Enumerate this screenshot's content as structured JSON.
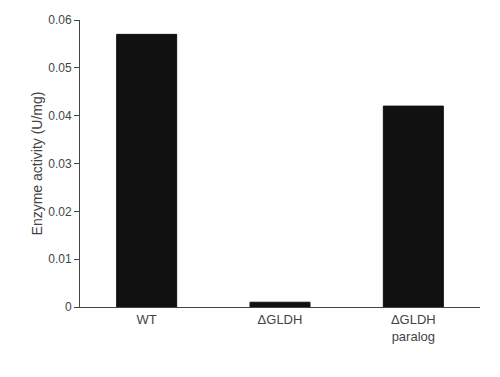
{
  "chart_data": {
    "type": "bar",
    "categories": [
      "WT",
      "ΔGLDH",
      "ΔGLDH\nparalog"
    ],
    "values": [
      0.057,
      0.001,
      0.042
    ],
    "color": "#111111",
    "ylabel": "Enzyme activity (U/mg)",
    "ylim": [
      0,
      0.06
    ],
    "yticks": [
      0,
      0.01,
      0.02,
      0.03,
      0.04,
      0.05,
      0.06
    ],
    "grid": false
  }
}
